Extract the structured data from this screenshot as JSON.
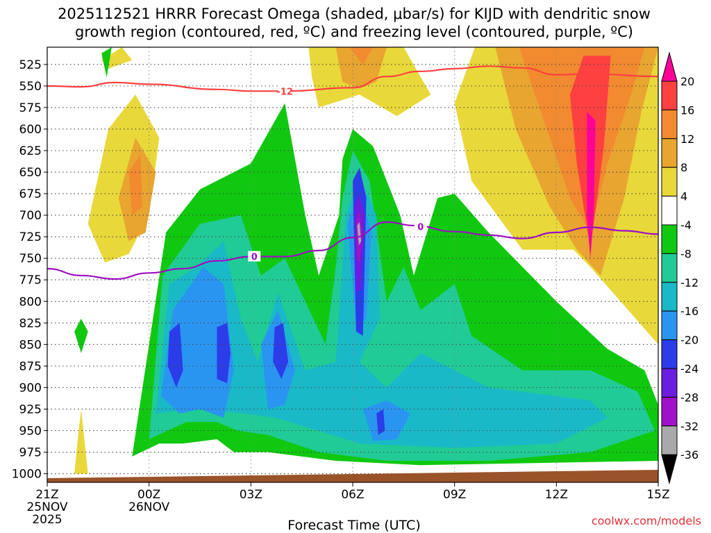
{
  "colors": {
    "c1": "#ff0099",
    "c2": "#ff4040",
    "c3": "#f28a30",
    "c4": "#e8a530",
    "c5": "#e9d83a",
    "c6": "#ffffff",
    "c7": "#10c810",
    "c8": "#20cb95",
    "c9": "#1ab9c8",
    "c10": "#2a95f0",
    "c11": "#2a3de8",
    "c12": "#6b1de0",
    "c13": "#a012c8",
    "c14": "#a9a9a9",
    "c15": "#000000",
    "snow": "#ff4040",
    "freezing": "#9b0fc0",
    "ground": "#9a5328",
    "credit": "#e0303a"
  },
  "chart_data": {
    "type": "heatmap",
    "title_line1": "2025112521 HRRR Forecast Omega (shaded, μbar/s) for KIJD with dendritic snow",
    "title_line2": "growth region (contoured, red, ºC) and freezing level (contoured, purple, ºC)",
    "xlabel": "Forecast Time (UTC)",
    "x_unit": "hours since 2025-11-25 21Z",
    "xlim": [
      0,
      18
    ],
    "ylim": [
      1010,
      505
    ],
    "x_ticks": [
      {
        "x": 0,
        "lines": [
          "21Z",
          "25NOV",
          "2025"
        ]
      },
      {
        "x": 3,
        "lines": [
          "00Z",
          "26NOV"
        ]
      },
      {
        "x": 6,
        "lines": [
          "03Z"
        ]
      },
      {
        "x": 9,
        "lines": [
          "06Z"
        ]
      },
      {
        "x": 12,
        "lines": [
          "09Z"
        ]
      },
      {
        "x": 15,
        "lines": [
          "12Z"
        ]
      },
      {
        "x": 18,
        "lines": [
          "15Z"
        ]
      }
    ],
    "y_ticks": [
      "525",
      "550",
      "575",
      "600",
      "625",
      "650",
      "675",
      "700",
      "725",
      "750",
      "775",
      "800",
      "825",
      "850",
      "875",
      "900",
      "925",
      "950",
      "975",
      "1000"
    ],
    "colorbar": {
      "labels": [
        "20",
        "16",
        "12",
        "8",
        "4",
        "-4",
        "-8",
        "-12",
        "-16",
        "-20",
        "-24",
        "-28",
        "-32",
        "-36"
      ],
      "colors": [
        "#ff0099",
        "#ff4040",
        "#f28a30",
        "#e8a530",
        "#e9d83a",
        "#ffffff",
        "#10c810",
        "#20cb95",
        "#1ab9c8",
        "#2a95f0",
        "#2a3de8",
        "#6b1de0",
        "#a012c8",
        "#a9a9a9",
        "#000000"
      ]
    },
    "contours": [
      {
        "name": "snow_growth_-12C",
        "label": "-12",
        "points": [
          [
            0,
            550
          ],
          [
            1,
            551
          ],
          [
            2,
            546
          ],
          [
            3,
            548
          ],
          [
            5,
            554
          ],
          [
            6,
            556
          ],
          [
            7,
            556
          ],
          [
            9,
            552
          ],
          [
            10,
            539
          ],
          [
            11,
            533
          ],
          [
            12,
            530
          ],
          [
            13,
            527
          ],
          [
            14,
            529
          ],
          [
            15,
            537
          ],
          [
            16,
            536
          ],
          [
            18,
            539
          ]
        ]
      },
      {
        "name": "freezing_level_0C",
        "label": "0",
        "points": [
          [
            0,
            762
          ],
          [
            1,
            770
          ],
          [
            2,
            774
          ],
          [
            3,
            767
          ],
          [
            4,
            762
          ],
          [
            5,
            753
          ],
          [
            6,
            748
          ],
          [
            7,
            748
          ],
          [
            8,
            741
          ],
          [
            9,
            726
          ],
          [
            10,
            708
          ],
          [
            10.8,
            712
          ],
          [
            12,
            719
          ],
          [
            13,
            723
          ],
          [
            14,
            727
          ],
          [
            15,
            720
          ],
          [
            16,
            714
          ],
          [
            17,
            718
          ],
          [
            18,
            722
          ]
        ]
      }
    ],
    "shading_regions": [
      {
        "level": "4",
        "points": [
          [
            0.8,
            1000
          ],
          [
            0.9,
            960
          ],
          [
            1,
            925
          ],
          [
            1.2,
            1000
          ]
        ]
      },
      {
        "level": "4",
        "points": [
          [
            1.6,
            520
          ],
          [
            2.2,
            505
          ],
          [
            2.5,
            520
          ],
          [
            1.8,
            530
          ]
        ]
      },
      {
        "level": "4",
        "points": [
          [
            1.8,
            600
          ],
          [
            2.6,
            560
          ],
          [
            3.3,
            610
          ],
          [
            3,
            700
          ],
          [
            2.4,
            745
          ],
          [
            1.7,
            755
          ],
          [
            1.2,
            710
          ]
        ]
      },
      {
        "level": "8",
        "points": [
          [
            2.6,
            610
          ],
          [
            3.2,
            650
          ],
          [
            2.9,
            720
          ],
          [
            2.4,
            730
          ],
          [
            2.1,
            680
          ]
        ]
      },
      {
        "level": "12",
        "points": [
          [
            2.4,
            650
          ],
          [
            2.75,
            630
          ],
          [
            2.8,
            690
          ],
          [
            2.5,
            700
          ]
        ]
      },
      {
        "level": "4",
        "points": [
          [
            7.7,
            505
          ],
          [
            10.5,
            505
          ],
          [
            11.3,
            560
          ],
          [
            10.3,
            585
          ],
          [
            9.2,
            560
          ],
          [
            8,
            575
          ],
          [
            7.8,
            540
          ]
        ]
      },
      {
        "level": "8",
        "points": [
          [
            8.5,
            505
          ],
          [
            10,
            505
          ],
          [
            9.7,
            545
          ],
          [
            9.2,
            553
          ],
          [
            8.7,
            545
          ]
        ]
      },
      {
        "level": "12",
        "points": [
          [
            8.9,
            505
          ],
          [
            9.6,
            505
          ],
          [
            9.3,
            525
          ]
        ]
      },
      {
        "level": "4",
        "points": [
          [
            12.6,
            505
          ],
          [
            18,
            505
          ],
          [
            18,
            850
          ],
          [
            16,
            760
          ],
          [
            15.5,
            740
          ],
          [
            14,
            740
          ],
          [
            12.5,
            660
          ],
          [
            12,
            570
          ]
        ]
      },
      {
        "level": "8",
        "points": [
          [
            13.2,
            505
          ],
          [
            18,
            505
          ],
          [
            17.5,
            580
          ],
          [
            17,
            680
          ],
          [
            16.3,
            770
          ],
          [
            15.6,
            740
          ],
          [
            14.8,
            690
          ],
          [
            13.8,
            600
          ]
        ]
      },
      {
        "level": "12",
        "points": [
          [
            13.9,
            505
          ],
          [
            17.6,
            505
          ],
          [
            17.2,
            560
          ],
          [
            16.5,
            640
          ],
          [
            16,
            720
          ],
          [
            15.4,
            680
          ],
          [
            14.8,
            610
          ]
        ]
      },
      {
        "level": "16",
        "points": [
          [
            15.8,
            515
          ],
          [
            16.6,
            515
          ],
          [
            16.4,
            620
          ],
          [
            16,
            740
          ],
          [
            15.6,
            640
          ],
          [
            15.4,
            560
          ]
        ]
      },
      {
        "level": "20",
        "points": [
          [
            15.9,
            580
          ],
          [
            16.15,
            590
          ],
          [
            16.1,
            700
          ],
          [
            16,
            750
          ],
          [
            15.9,
            700
          ]
        ]
      },
      {
        "level": "-4",
        "points": [
          [
            1,
            820
          ],
          [
            1.2,
            835
          ],
          [
            1,
            860
          ],
          [
            0.8,
            835
          ]
        ]
      },
      {
        "level": "-4",
        "points": [
          [
            1.6,
            512
          ],
          [
            1.9,
            505
          ],
          [
            1.75,
            540
          ]
        ]
      },
      {
        "level": "-4",
        "points": [
          [
            2.5,
            980
          ],
          [
            3.5,
            720
          ],
          [
            4.5,
            670
          ],
          [
            6,
            640
          ],
          [
            7,
            570
          ],
          [
            7.6,
            700
          ],
          [
            8,
            770
          ],
          [
            8.6,
            700
          ],
          [
            8.7,
            635
          ],
          [
            9,
            600
          ],
          [
            9.6,
            620
          ],
          [
            10.4,
            700
          ],
          [
            10.8,
            770
          ],
          [
            11.5,
            680
          ],
          [
            12,
            675
          ],
          [
            13,
            720
          ],
          [
            15,
            800
          ],
          [
            16.5,
            855
          ],
          [
            17.6,
            880
          ],
          [
            18,
            920
          ],
          [
            18,
            985
          ],
          [
            11,
            990
          ],
          [
            8.5,
            985
          ],
          [
            6.5,
            975
          ],
          [
            5.5,
            975
          ],
          [
            5,
            960
          ],
          [
            4,
            965
          ],
          [
            3.3,
            965
          ]
        ]
      },
      {
        "level": "-8",
        "points": [
          [
            3,
            960
          ],
          [
            3.4,
            770
          ],
          [
            4.5,
            710
          ],
          [
            5.7,
            700
          ],
          [
            6.3,
            770
          ],
          [
            7,
            750
          ],
          [
            8.2,
            850
          ],
          [
            8.5,
            760
          ],
          [
            8.7,
            680
          ],
          [
            9,
            625
          ],
          [
            9.5,
            660
          ],
          [
            10,
            800
          ],
          [
            10.5,
            760
          ],
          [
            11,
            810
          ],
          [
            12,
            780
          ],
          [
            12.5,
            840
          ],
          [
            14,
            880
          ],
          [
            16,
            880
          ],
          [
            17.4,
            905
          ],
          [
            17.9,
            950
          ],
          [
            16,
            975
          ],
          [
            13,
            985
          ],
          [
            10,
            985
          ],
          [
            8,
            975
          ],
          [
            6.5,
            955
          ],
          [
            5.6,
            950
          ],
          [
            5,
            940
          ],
          [
            4.1,
            940
          ]
        ]
      },
      {
        "level": "-12",
        "points": [
          [
            3.2,
            930
          ],
          [
            3.6,
            780
          ],
          [
            4.4,
            760
          ],
          [
            5.2,
            730
          ],
          [
            5.7,
            820
          ],
          [
            6.2,
            870
          ],
          [
            6.8,
            790
          ],
          [
            7.6,
            880
          ],
          [
            8.5,
            870
          ],
          [
            8.8,
            700
          ],
          [
            9.2,
            655
          ],
          [
            9.7,
            700
          ],
          [
            9.8,
            820
          ],
          [
            9.2,
            870
          ],
          [
            10,
            900
          ],
          [
            11,
            860
          ],
          [
            13,
            900
          ],
          [
            16,
            915
          ],
          [
            16.5,
            935
          ],
          [
            15,
            965
          ],
          [
            12,
            970
          ],
          [
            9.2,
            965
          ],
          [
            8,
            950
          ],
          [
            6.7,
            935
          ],
          [
            5.8,
            930
          ],
          [
            4.2,
            925
          ]
        ]
      },
      {
        "level": "-16",
        "points": [
          [
            3.35,
            910
          ],
          [
            3.7,
            810
          ],
          [
            4.6,
            760
          ],
          [
            5.2,
            780
          ],
          [
            5.5,
            880
          ],
          [
            5.2,
            935
          ],
          [
            4.5,
            925
          ],
          [
            3.9,
            930
          ]
        ]
      },
      {
        "level": "-16",
        "points": [
          [
            6.3,
            850
          ],
          [
            6.8,
            810
          ],
          [
            7.3,
            880
          ],
          [
            7,
            920
          ],
          [
            6.5,
            925
          ]
        ]
      },
      {
        "level": "-16",
        "points": [
          [
            8.85,
            710
          ],
          [
            9.2,
            670
          ],
          [
            9.55,
            720
          ],
          [
            9.4,
            820
          ],
          [
            9.1,
            830
          ]
        ]
      },
      {
        "level": "-16",
        "points": [
          [
            9.3,
            925
          ],
          [
            10,
            915
          ],
          [
            10.7,
            930
          ],
          [
            10.3,
            960
          ],
          [
            9.6,
            962
          ]
        ]
      },
      {
        "level": "-20",
        "points": [
          [
            3.6,
            835
          ],
          [
            3.9,
            825
          ],
          [
            4.0,
            880
          ],
          [
            3.8,
            900
          ],
          [
            3.55,
            875
          ]
        ]
      },
      {
        "level": "-20",
        "points": [
          [
            5,
            830
          ],
          [
            5.3,
            825
          ],
          [
            5.4,
            860
          ],
          [
            5.3,
            895
          ],
          [
            5.0,
            890
          ]
        ]
      },
      {
        "level": "-20",
        "points": [
          [
            6.7,
            830
          ],
          [
            6.95,
            825
          ],
          [
            7.1,
            870
          ],
          [
            6.9,
            890
          ],
          [
            6.65,
            870
          ]
        ]
      },
      {
        "level": "-20",
        "points": [
          [
            9.0,
            660
          ],
          [
            9.2,
            645
          ],
          [
            9.4,
            680
          ],
          [
            9.3,
            840
          ],
          [
            9.1,
            835
          ]
        ]
      },
      {
        "level": "-20",
        "points": [
          [
            9.7,
            930
          ],
          [
            9.9,
            925
          ],
          [
            9.95,
            950
          ],
          [
            9.75,
            955
          ]
        ]
      },
      {
        "level": "-24",
        "points": [
          [
            9.05,
            690
          ],
          [
            9.2,
            675
          ],
          [
            9.35,
            700
          ],
          [
            9.25,
            785
          ],
          [
            9.1,
            790
          ]
        ]
      },
      {
        "level": "-28",
        "points": [
          [
            9.1,
            705
          ],
          [
            9.2,
            695
          ],
          [
            9.3,
            720
          ],
          [
            9.2,
            755
          ],
          [
            9.12,
            750
          ]
        ]
      },
      {
        "level": "-32",
        "points": [
          [
            9.13,
            712
          ],
          [
            9.2,
            708
          ],
          [
            9.25,
            730
          ],
          [
            9.18,
            735
          ]
        ]
      }
    ]
  },
  "credit": "coolwx.com/models"
}
